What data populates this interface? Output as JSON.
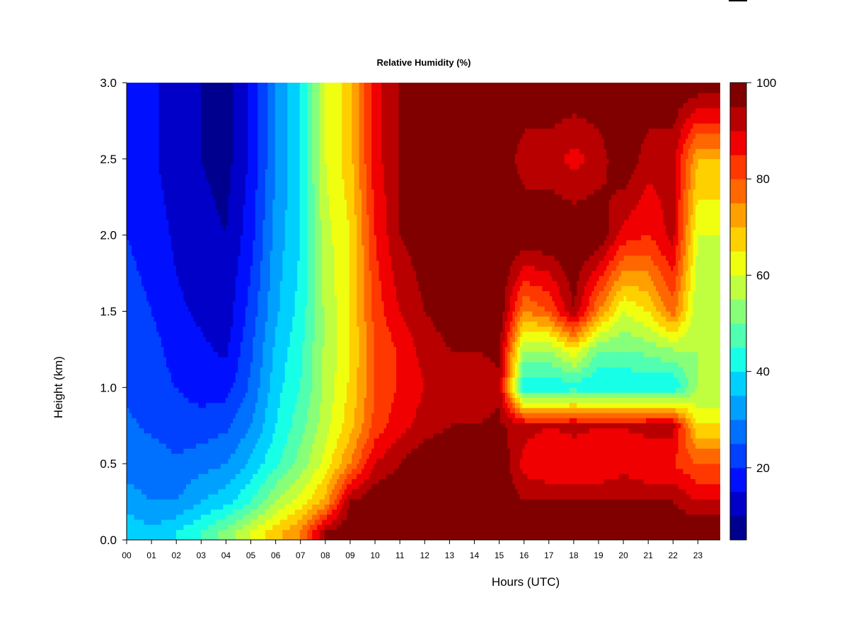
{
  "chart_data": {
    "type": "heatmap",
    "title": "Relative Humidity (%)",
    "xlabel": "Hours (UTC)",
    "ylabel": "Height (km)",
    "xlim": [
      0,
      23.9
    ],
    "ylim": [
      0,
      3.0
    ],
    "x_tick_labels": [
      "00",
      "01",
      "02",
      "03",
      "04",
      "05",
      "06",
      "07",
      "08",
      "09",
      "10",
      "11",
      "12",
      "13",
      "14",
      "15",
      "16",
      "17",
      "18",
      "19",
      "20",
      "21",
      "22",
      "23"
    ],
    "x_tick_values": [
      0,
      1,
      2,
      3,
      4,
      5,
      6,
      7,
      8,
      9,
      10,
      11,
      12,
      13,
      14,
      15,
      16,
      17,
      18,
      19,
      20,
      21,
      22,
      23
    ],
    "y_tick_labels": [
      "0.0",
      "0.5",
      "1.0",
      "1.5",
      "2.0",
      "2.5",
      "3.0"
    ],
    "y_tick_values": [
      0,
      0.5,
      1.0,
      1.5,
      2.0,
      2.5,
      3.0
    ],
    "colorbar": {
      "range": [
        5,
        100
      ],
      "tick_labels": [
        "20",
        "40",
        "60",
        "80",
        "100"
      ],
      "tick_values": [
        20,
        40,
        60,
        80,
        100
      ],
      "colors": [
        "#00008f",
        "#0000c8",
        "#0010ff",
        "#0040ff",
        "#0070ff",
        "#00a0ff",
        "#00d0ff",
        "#18ffe8",
        "#50ffb0",
        "#88ff78",
        "#c0ff40",
        "#f0ff10",
        "#ffd000",
        "#ffa000",
        "#ff6800",
        "#ff3800",
        "#f00000",
        "#b80000",
        "#800000"
      ]
    },
    "grid": false,
    "hours": [
      0,
      1,
      2,
      3,
      4,
      5,
      6,
      7,
      8,
      9,
      10,
      11,
      12,
      13,
      14,
      15,
      16,
      17,
      18,
      19,
      20,
      21,
      22,
      23
    ],
    "heights_km": [
      0.05,
      0.25,
      0.5,
      0.75,
      1.0,
      1.25,
      1.5,
      2.0,
      2.5,
      3.0
    ],
    "rh_percent_by_hour": [
      [
        40,
        32,
        28,
        26,
        24,
        24,
        22,
        20,
        18,
        18
      ],
      [
        36,
        30,
        28,
        24,
        22,
        22,
        20,
        18,
        16,
        16
      ],
      [
        40,
        30,
        26,
        22,
        20,
        18,
        16,
        14,
        12,
        12
      ],
      [
        45,
        35,
        28,
        22,
        18,
        16,
        14,
        12,
        10,
        10
      ],
      [
        52,
        38,
        30,
        24,
        18,
        14,
        12,
        10,
        8,
        8
      ],
      [
        60,
        45,
        36,
        30,
        26,
        24,
        22,
        18,
        16,
        16
      ],
      [
        68,
        55,
        44,
        40,
        38,
        36,
        34,
        32,
        30,
        30
      ],
      [
        75,
        62,
        52,
        48,
        45,
        44,
        42,
        40,
        40,
        40
      ],
      [
        95,
        72,
        62,
        58,
        56,
        56,
        56,
        58,
        60,
        60
      ],
      [
        100,
        95,
        75,
        68,
        66,
        65,
        65,
        65,
        68,
        68
      ],
      [
        100,
        100,
        90,
        82,
        80,
        80,
        82,
        85,
        88,
        88
      ],
      [
        100,
        100,
        95,
        88,
        86,
        86,
        90,
        95,
        95,
        95
      ],
      [
        100,
        100,
        100,
        92,
        90,
        92,
        95,
        98,
        98,
        98
      ],
      [
        100,
        100,
        100,
        95,
        92,
        95,
        98,
        100,
        100,
        100
      ],
      [
        100,
        100,
        100,
        95,
        92,
        95,
        100,
        100,
        100,
        100
      ],
      [
        100,
        100,
        100,
        96,
        94,
        96,
        100,
        100,
        100,
        100
      ],
      [
        100,
        95,
        88,
        92,
        40,
        55,
        75,
        100,
        92,
        100
      ],
      [
        100,
        95,
        85,
        90,
        40,
        55,
        80,
        100,
        92,
        100
      ],
      [
        100,
        95,
        85,
        92,
        42,
        65,
        95,
        100,
        88,
        100
      ],
      [
        100,
        95,
        85,
        90,
        40,
        50,
        75,
        100,
        92,
        100
      ],
      [
        100,
        95,
        88,
        90,
        40,
        50,
        60,
        88,
        100,
        100
      ],
      [
        100,
        95,
        85,
        92,
        40,
        52,
        65,
        85,
        92,
        100
      ],
      [
        100,
        95,
        85,
        92,
        40,
        55,
        78,
        92,
        92,
        100
      ],
      [
        100,
        90,
        80,
        65,
        55,
        55,
        55,
        60,
        70,
        100
      ]
    ]
  }
}
